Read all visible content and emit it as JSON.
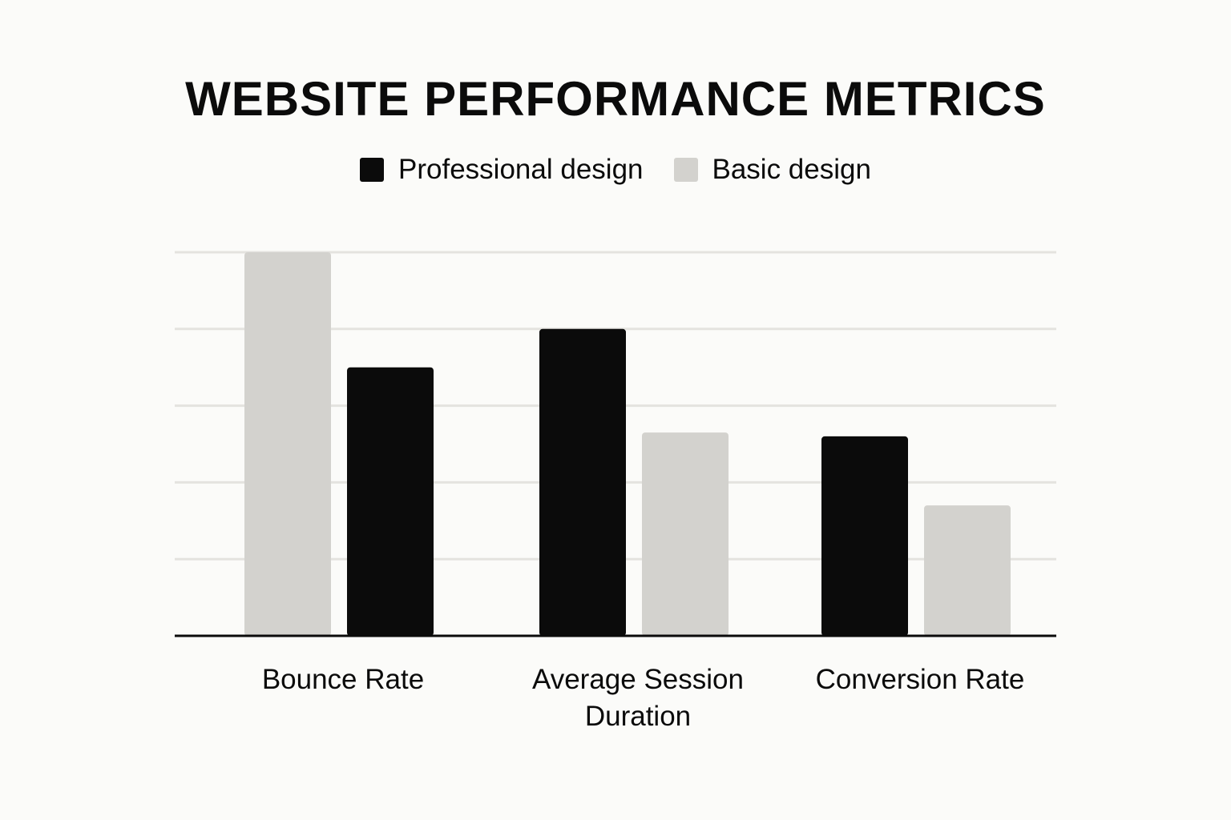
{
  "chart_data": {
    "type": "bar",
    "title": "WEBSITE PERFORMANCE METRICS",
    "xlabel": "",
    "ylabel": "",
    "categories": [
      [
        "Bounce Rate"
      ],
      [
        "Average Session",
        "Duration"
      ],
      [
        "Conversion Rate"
      ]
    ],
    "series": [
      {
        "name": "Professional design",
        "color": "#0b0b0b",
        "values": [
          3.5,
          4.0,
          2.6
        ]
      },
      {
        "name": "Basic design",
        "color": "#d3d2ce",
        "values": [
          5.0,
          2.65,
          1.7
        ]
      }
    ],
    "bar_order": [
      [
        1,
        0
      ],
      [
        0,
        1
      ],
      [
        0,
        1
      ]
    ],
    "ylim": [
      0,
      5
    ],
    "grid": true,
    "show_y_ticks": false,
    "legend_position": "top-center",
    "colors": {
      "background": "#fbfbf9",
      "gridline": "#e4e3df",
      "axis": "#0b0b0b"
    }
  }
}
